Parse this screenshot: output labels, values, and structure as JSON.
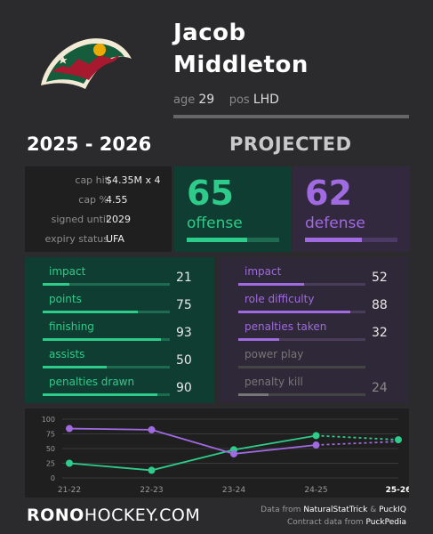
{
  "player": {
    "first_name": "Jacob",
    "last_name": "Middleton",
    "age_label": "age",
    "age": "29",
    "pos_label": "pos",
    "pos": "LHD"
  },
  "season": "2025 - 2026",
  "projected_label": "PROJECTED",
  "contract": [
    {
      "label": "cap hit",
      "value": "$4.35M x 4"
    },
    {
      "label": "cap %",
      "value": "4.55"
    },
    {
      "label": "signed until",
      "value": "2029"
    },
    {
      "label": "expiry status",
      "value": "UFA"
    }
  ],
  "offense": {
    "value": "65",
    "label": "offense",
    "fraction": 0.65,
    "color": "#2ecc8a"
  },
  "defense": {
    "value": "62",
    "label": "defense",
    "fraction": 0.62,
    "color": "#a06ae0"
  },
  "offense_stats": [
    {
      "label": "impact",
      "value": "21",
      "fraction": 0.21
    },
    {
      "label": "points",
      "value": "75",
      "fraction": 0.75
    },
    {
      "label": "finishing",
      "value": "93",
      "fraction": 0.93
    },
    {
      "label": "assists",
      "value": "50",
      "fraction": 0.5
    },
    {
      "label": "penalties drawn",
      "value": "90",
      "fraction": 0.9
    }
  ],
  "defense_stats": [
    {
      "label": "impact",
      "value": "52",
      "fraction": 0.52,
      "active": true
    },
    {
      "label": "role difficulty",
      "value": "88",
      "fraction": 0.88,
      "active": true
    },
    {
      "label": "penalties taken",
      "value": "32",
      "fraction": 0.32,
      "active": true
    },
    {
      "label": "power play",
      "value": "",
      "fraction": 0,
      "active": false
    },
    {
      "label": "penalty kill",
      "value": "24",
      "fraction": 0.24,
      "active": false
    }
  ],
  "chart_data": {
    "type": "line",
    "categories": [
      "21-22",
      "22-23",
      "23-24",
      "24-25",
      "25-26"
    ],
    "ylim": [
      0,
      100
    ],
    "yticks": [
      "100",
      "75",
      "50",
      "25",
      "0"
    ],
    "grid": true,
    "series": [
      {
        "color": "#2ecc8a",
        "values": [
          25,
          13,
          48,
          72,
          65
        ]
      },
      {
        "color": "#a06ae0",
        "values": [
          84,
          82,
          41,
          56,
          62
        ]
      }
    ],
    "projected_index": 4
  },
  "footer": {
    "brand_bold": "RONO",
    "brand_rest": "HOCKEY.COM",
    "data_from": "Data from",
    "source1": "NaturalStatTrick",
    "amp": "&",
    "source2": "PuckIQ",
    "contract_from": "Contract data from",
    "source3": "PuckPedia"
  },
  "colors": {
    "offense_bg": "#0f3d32",
    "defense_bg": "#2e2838",
    "green": "#2ecc8a",
    "purple": "#a06ae0",
    "gray_bar": "#555"
  }
}
